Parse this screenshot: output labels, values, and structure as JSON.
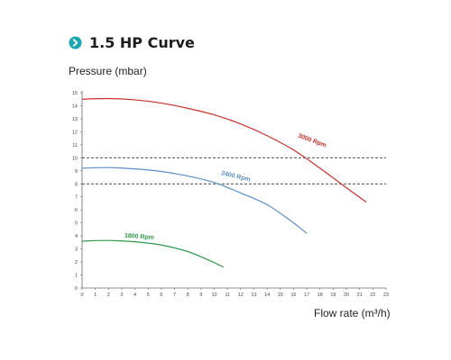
{
  "header": {
    "title": "1.5 HP Curve",
    "icon": "arrow-circle-icon",
    "icon_color": "#1ea6b0"
  },
  "chart_data": {
    "type": "line",
    "title": "1.5 HP Curve",
    "ylabel": "Pressure (mbar)",
    "xlabel": "Flow rate (m³/h)",
    "xlim": [
      0,
      23
    ],
    "ylim": [
      0,
      15
    ],
    "xticks": [
      "0",
      "1",
      "2",
      "3",
      "4",
      "5",
      "6",
      "7",
      "8",
      "9",
      "10",
      "11",
      "12",
      "13",
      "14",
      "15",
      "16",
      "17",
      "18",
      "19",
      "20",
      "21",
      "22",
      "23"
    ],
    "yticks": [
      "0",
      "1",
      "2",
      "3",
      "4",
      "5",
      "6",
      "7",
      "8",
      "9",
      "10",
      "11",
      "12",
      "13",
      "14",
      "15"
    ],
    "grid": false,
    "reference_lines": [
      {
        "y": 10,
        "style": "dashed",
        "color": "#333333"
      },
      {
        "y": 8,
        "style": "dashed",
        "color": "#333333"
      }
    ],
    "series": [
      {
        "name": "3000 Rpm",
        "color": "#c9302c",
        "points": [
          [
            0,
            14.5
          ],
          [
            2,
            14.55
          ],
          [
            4,
            14.45
          ],
          [
            6,
            14.2
          ],
          [
            8,
            13.8
          ],
          [
            10,
            13.3
          ],
          [
            12,
            12.6
          ],
          [
            14,
            11.7
          ],
          [
            16,
            10.6
          ],
          [
            18,
            9.2
          ],
          [
            20,
            7.7
          ],
          [
            21.5,
            6.6
          ]
        ]
      },
      {
        "name": "2400 Rpm",
        "color": "#5b8fc7",
        "points": [
          [
            0,
            9.2
          ],
          [
            2,
            9.25
          ],
          [
            4,
            9.15
          ],
          [
            6,
            8.95
          ],
          [
            8,
            8.6
          ],
          [
            10,
            8.1
          ],
          [
            12,
            7.3
          ],
          [
            14,
            6.4
          ],
          [
            16,
            5.0
          ],
          [
            17,
            4.2
          ]
        ]
      },
      {
        "name": "1800 Rpm",
        "color": "#2e9a4a",
        "points": [
          [
            0,
            3.6
          ],
          [
            2,
            3.65
          ],
          [
            4,
            3.55
          ],
          [
            6,
            3.3
          ],
          [
            8,
            2.8
          ],
          [
            9,
            2.4
          ],
          [
            10,
            1.95
          ],
          [
            10.7,
            1.6
          ]
        ]
      }
    ]
  }
}
